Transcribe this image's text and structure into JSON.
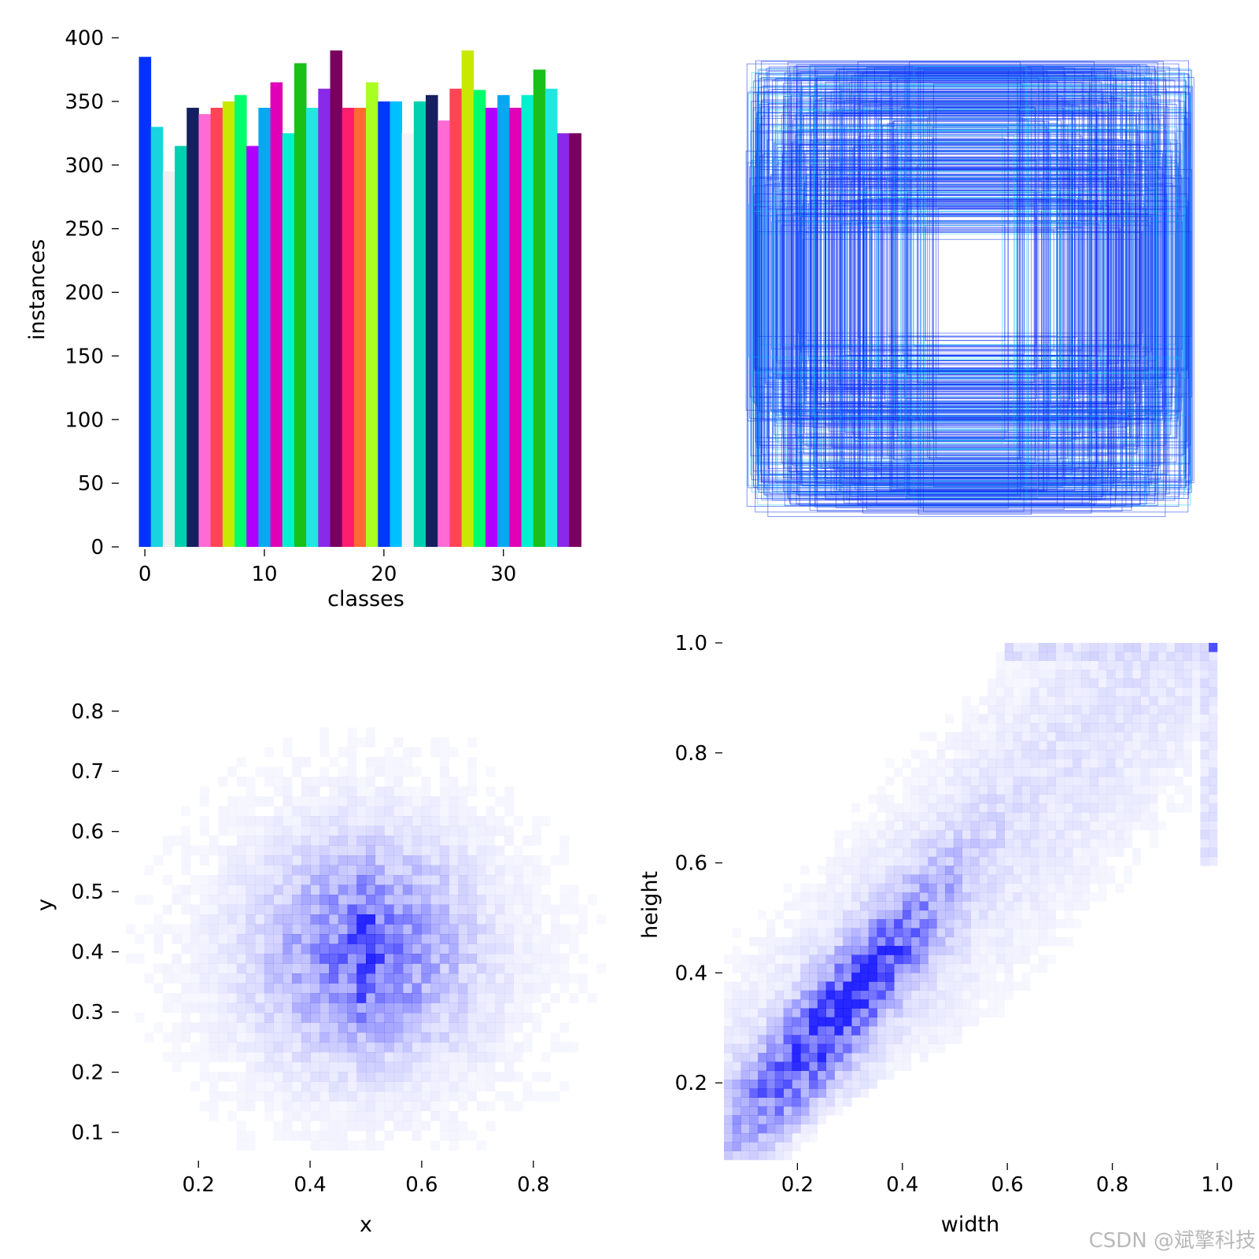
{
  "watermark": "CSDN @斌擎科技",
  "colors": {
    "box_stroke": "#0a2cf5",
    "box_stroke_alt": "#10c8f0",
    "heat_color": "#0000ff"
  },
  "chart_data": [
    {
      "type": "bar",
      "name": "class-instances",
      "xlabel": "classes",
      "ylabel": "instances",
      "xlim": [
        -0.6,
        36.6
      ],
      "ylim": [
        0,
        400
      ],
      "xticks": [
        0,
        10,
        20,
        30
      ],
      "yticks": [
        0,
        50,
        100,
        150,
        200,
        250,
        300,
        350,
        400
      ],
      "categories": [
        0,
        1,
        2,
        3,
        4,
        5,
        6,
        7,
        8,
        9,
        10,
        11,
        12,
        13,
        14,
        15,
        16,
        17,
        18,
        19,
        20,
        21,
        22,
        23,
        24,
        25,
        26,
        27,
        28,
        29,
        30,
        31,
        32,
        33,
        34,
        35,
        36
      ],
      "values": [
        385,
        330,
        295,
        315,
        345,
        340,
        345,
        350,
        355,
        315,
        345,
        365,
        325,
        380,
        345,
        360,
        390,
        345,
        345,
        365,
        350,
        350,
        325,
        350,
        355,
        335,
        360,
        390,
        359,
        345,
        355,
        345,
        355,
        375,
        360,
        325,
        325
      ],
      "bar_colors": [
        "#0033ff",
        "#17d4e0",
        "#f0f0f0",
        "#00d0b0",
        "#152060",
        "#ff6ad5",
        "#ff4455",
        "#c8e800",
        "#00ff6a",
        "#b000ff",
        "#08a8f0",
        "#e000b8",
        "#00f0d0",
        "#18c018",
        "#20e8e0",
        "#8a2ae8",
        "#7a0060",
        "#ff1e6e",
        "#ff6a30",
        "#a8ff20",
        "#0038ff",
        "#00c0ff",
        "#f4f4f4",
        "#00d0b0",
        "#152060",
        "#ff6ad5",
        "#ff4455",
        "#c8e800",
        "#00ff6a",
        "#b000ff",
        "#08a8f0",
        "#e000b8",
        "#00f0d0",
        "#18c018",
        "#20e8e0",
        "#8a2ae8",
        "#7a0060"
      ]
    },
    {
      "type": "rectangles",
      "name": "box-overlay",
      "description_free": true
    },
    {
      "type": "heatmap",
      "name": "xy-density",
      "xlabel": "x",
      "ylabel": "y",
      "xlim": [
        0.07,
        0.93
      ],
      "ylim": [
        0.07,
        0.92
      ],
      "xticks": [
        0.2,
        0.4,
        0.6,
        0.8
      ],
      "yticks": [
        0.1,
        0.2,
        0.3,
        0.4,
        0.5,
        0.6,
        0.7,
        0.8
      ],
      "center": [
        0.5,
        0.4
      ],
      "spread": [
        0.1,
        0.1
      ]
    },
    {
      "type": "heatmap",
      "name": "wh-density",
      "xlabel": "width",
      "ylabel": "height",
      "xlim": [
        0.06,
        1.0
      ],
      "ylim": [
        0.06,
        1.0
      ],
      "xticks": [
        0.2,
        0.4,
        0.6,
        0.8,
        1.0
      ],
      "yticks": [
        0.2,
        0.4,
        0.6,
        0.8,
        1.0
      ],
      "corner_peak": [
        1.0,
        1.0
      ]
    }
  ]
}
